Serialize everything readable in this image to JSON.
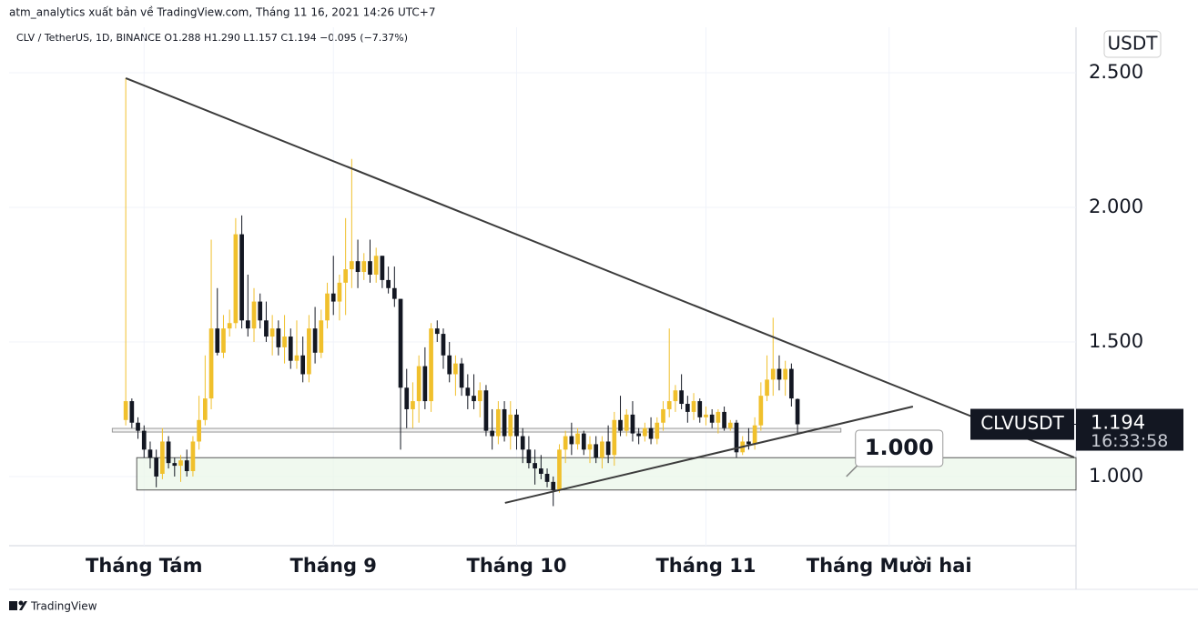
{
  "header": {
    "publisher_line": "atm_analytics xuất bản về TradingView.com, Tháng 11 16, 2021 14:26 UTC+7"
  },
  "footer": {
    "brand": "TradingView"
  },
  "chart_data": {
    "type": "candlestick",
    "symbol_line": "CLV / TetherUS, 1D, BINANCE  O1.288  H1.290  L1.157  C1.194  −0.095 (−7.37%)",
    "currency": "USDT",
    "up_color": "#f0c02c",
    "down_color": "#131722",
    "grid": true,
    "xlim": [
      -19.1,
      155.6
    ],
    "xticks": [
      {
        "value": 3,
        "label": "Tháng Tám"
      },
      {
        "value": 34,
        "label": "Tháng 9"
      },
      {
        "value": 64,
        "label": "Tháng 10"
      },
      {
        "value": 95,
        "label": "Tháng 11"
      },
      {
        "value": 125,
        "label": "Tháng Mười hai"
      }
    ],
    "ylim": [
      0.743,
      2.669
    ],
    "yticks": [
      {
        "value": 2.5,
        "label": "2.500"
      },
      {
        "value": 2,
        "label": "2.000"
      },
      {
        "value": 1.5,
        "label": "1.500"
      },
      {
        "value": 1,
        "label": "1.000"
      }
    ],
    "candles": [
      [
        1.21,
        2.48,
        1.19,
        1.28
      ],
      [
        1.28,
        1.29,
        1.18,
        1.2
      ],
      [
        1.2,
        1.22,
        1.14,
        1.17
      ],
      [
        1.17,
        1.19,
        1.07,
        1.1
      ],
      [
        1.1,
        1.13,
        1.03,
        1.07
      ],
      [
        1.07,
        1.1,
        0.96,
        1.0
      ],
      [
        1.01,
        1.18,
        0.99,
        1.13
      ],
      [
        1.13,
        1.15,
        1.03,
        1.05
      ],
      [
        1.05,
        1.07,
        1.0,
        1.04
      ],
      [
        1.04,
        1.08,
        0.98,
        1.06
      ],
      [
        1.06,
        1.1,
        1.0,
        1.02
      ],
      [
        1.02,
        1.15,
        1.0,
        1.13
      ],
      [
        1.13,
        1.3,
        1.1,
        1.21
      ],
      [
        1.21,
        1.45,
        1.19,
        1.29
      ],
      [
        1.29,
        1.88,
        1.25,
        1.55
      ],
      [
        1.55,
        1.7,
        1.45,
        1.46
      ],
      [
        1.46,
        1.6,
        1.44,
        1.55
      ],
      [
        1.55,
        1.62,
        1.52,
        1.57
      ],
      [
        1.57,
        1.96,
        1.55,
        1.9
      ],
      [
        1.9,
        1.97,
        1.55,
        1.58
      ],
      [
        1.58,
        1.75,
        1.52,
        1.55
      ],
      [
        1.55,
        1.7,
        1.5,
        1.65
      ],
      [
        1.65,
        1.68,
        1.55,
        1.58
      ],
      [
        1.58,
        1.65,
        1.5,
        1.52
      ],
      [
        1.52,
        1.6,
        1.45,
        1.55
      ],
      [
        1.55,
        1.58,
        1.45,
        1.48
      ],
      [
        1.48,
        1.6,
        1.42,
        1.52
      ],
      [
        1.52,
        1.55,
        1.4,
        1.43
      ],
      [
        1.43,
        1.58,
        1.4,
        1.45
      ],
      [
        1.45,
        1.52,
        1.35,
        1.38
      ],
      [
        1.38,
        1.6,
        1.35,
        1.55
      ],
      [
        1.55,
        1.63,
        1.42,
        1.46
      ],
      [
        1.46,
        1.62,
        1.44,
        1.58
      ],
      [
        1.58,
        1.72,
        1.55,
        1.68
      ],
      [
        1.68,
        1.82,
        1.6,
        1.65
      ],
      [
        1.65,
        1.75,
        1.58,
        1.72
      ],
      [
        1.72,
        1.96,
        1.6,
        1.77
      ],
      [
        1.77,
        2.18,
        1.7,
        1.8
      ],
      [
        1.8,
        1.88,
        1.7,
        1.76
      ],
      [
        1.76,
        1.83,
        1.73,
        1.8
      ],
      [
        1.8,
        1.88,
        1.72,
        1.75
      ],
      [
        1.75,
        1.85,
        1.72,
        1.82
      ],
      [
        1.82,
        1.82,
        1.7,
        1.73
      ],
      [
        1.73,
        1.78,
        1.68,
        1.7
      ],
      [
        1.7,
        1.78,
        1.63,
        1.66
      ],
      [
        1.66,
        1.66,
        1.1,
        1.33
      ],
      [
        1.33,
        1.4,
        1.18,
        1.25
      ],
      [
        1.25,
        1.35,
        1.18,
        1.28
      ],
      [
        1.28,
        1.45,
        1.2,
        1.41
      ],
      [
        1.41,
        1.48,
        1.25,
        1.28
      ],
      [
        1.28,
        1.57,
        1.24,
        1.55
      ],
      [
        1.55,
        1.58,
        1.5,
        1.53
      ],
      [
        1.53,
        1.55,
        1.4,
        1.45
      ],
      [
        1.45,
        1.5,
        1.35,
        1.38
      ],
      [
        1.38,
        1.45,
        1.3,
        1.42
      ],
      [
        1.42,
        1.44,
        1.3,
        1.33
      ],
      [
        1.33,
        1.38,
        1.25,
        1.3
      ],
      [
        1.3,
        1.38,
        1.25,
        1.28
      ],
      [
        1.28,
        1.35,
        1.22,
        1.32
      ],
      [
        1.32,
        1.34,
        1.15,
        1.17
      ],
      [
        1.17,
        1.25,
        1.1,
        1.15
      ],
      [
        1.15,
        1.28,
        1.12,
        1.25
      ],
      [
        1.25,
        1.28,
        1.13,
        1.15
      ],
      [
        1.15,
        1.28,
        1.1,
        1.23
      ],
      [
        1.23,
        1.25,
        1.1,
        1.15
      ],
      [
        1.15,
        1.18,
        1.05,
        1.1
      ],
      [
        1.1,
        1.15,
        1.03,
        1.05
      ],
      [
        1.05,
        1.1,
        0.97,
        1.03
      ],
      [
        1.03,
        1.08,
        0.99,
        1.01
      ],
      [
        1.01,
        1.03,
        0.96,
        0.98
      ],
      [
        0.98,
        1.0,
        0.89,
        0.95
      ],
      [
        0.95,
        1.12,
        0.94,
        1.1
      ],
      [
        1.1,
        1.17,
        1.05,
        1.15
      ],
      [
        1.15,
        1.2,
        1.08,
        1.12
      ],
      [
        1.12,
        1.18,
        1.1,
        1.16
      ],
      [
        1.16,
        1.17,
        1.08,
        1.1
      ],
      [
        1.1,
        1.15,
        1.05,
        1.12
      ],
      [
        1.12,
        1.15,
        1.05,
        1.07
      ],
      [
        1.07,
        1.15,
        1.03,
        1.13
      ],
      [
        1.13,
        1.19,
        1.05,
        1.08
      ],
      [
        1.08,
        1.24,
        1.04,
        1.21
      ],
      [
        1.21,
        1.3,
        1.15,
        1.17
      ],
      [
        1.17,
        1.25,
        1.15,
        1.23
      ],
      [
        1.23,
        1.28,
        1.13,
        1.16
      ],
      [
        1.16,
        1.18,
        1.12,
        1.15
      ],
      [
        1.15,
        1.2,
        1.13,
        1.18
      ],
      [
        1.18,
        1.22,
        1.12,
        1.14
      ],
      [
        1.14,
        1.22,
        1.12,
        1.2
      ],
      [
        1.2,
        1.28,
        1.17,
        1.25
      ],
      [
        1.25,
        1.55,
        1.22,
        1.28
      ],
      [
        1.28,
        1.34,
        1.24,
        1.32
      ],
      [
        1.32,
        1.38,
        1.25,
        1.27
      ],
      [
        1.27,
        1.3,
        1.2,
        1.24
      ],
      [
        1.24,
        1.31,
        1.21,
        1.28
      ],
      [
        1.28,
        1.29,
        1.2,
        1.22
      ],
      [
        1.22,
        1.26,
        1.19,
        1.23
      ],
      [
        1.23,
        1.25,
        1.18,
        1.2
      ],
      [
        1.2,
        1.25,
        1.16,
        1.24
      ],
      [
        1.24,
        1.26,
        1.17,
        1.18
      ],
      [
        1.18,
        1.21,
        1.17,
        1.2
      ],
      [
        1.2,
        1.21,
        1.07,
        1.09
      ],
      [
        1.09,
        1.15,
        1.08,
        1.13
      ],
      [
        1.13,
        1.18,
        1.1,
        1.12
      ],
      [
        1.12,
        1.22,
        1.1,
        1.19
      ],
      [
        1.19,
        1.35,
        1.17,
        1.3
      ],
      [
        1.3,
        1.45,
        1.28,
        1.36
      ],
      [
        1.36,
        1.59,
        1.3,
        1.4
      ],
      [
        1.4,
        1.45,
        1.32,
        1.36
      ],
      [
        1.36,
        1.43,
        1.3,
        1.4
      ],
      [
        1.4,
        1.42,
        1.26,
        1.29
      ],
      [
        1.288,
        1.29,
        1.157,
        1.194
      ]
    ],
    "trendlines": [
      [
        [
          0,
          2.48
        ],
        [
          155.3,
          1.071
        ]
      ],
      [
        [
          62.1,
          0.902
        ],
        [
          128.9,
          1.26
        ]
      ]
    ],
    "support_zone": {
      "x": [
        1.8,
        155.6
      ],
      "y": [
        0.95,
        1.07
      ]
    },
    "level_line": {
      "x": [
        -2.2,
        117.1
      ],
      "y": 1.172
    },
    "callout": {
      "label": "1.000",
      "x": 118,
      "y": 1.0
    },
    "last_price": {
      "symbol": "CLVUSDT",
      "value": 1.194,
      "countdown": "16:33:58"
    }
  }
}
